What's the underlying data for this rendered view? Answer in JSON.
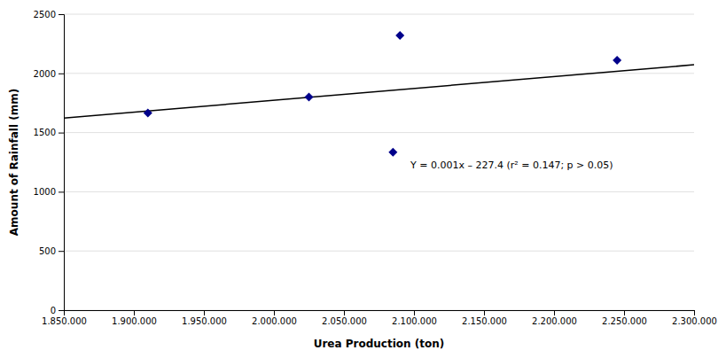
{
  "chart_data": {
    "type": "scatter",
    "xlabel": "Urea Production (ton)",
    "ylabel": "Amount of Rainfall (mm)",
    "annotation": "Y = 0.001x – 227.4  (r² = 0.147; p > 0.05)",
    "series": [
      {
        "type": "scatter",
        "color": "#00008B",
        "marker": "diamond",
        "x": [
          1910000,
          2025000,
          2085000,
          2090000,
          2245000
        ],
        "values": [
          1665,
          1800,
          1335,
          2320,
          2110
        ]
      },
      {
        "type": "line",
        "color": "#000000",
        "line_style": "solid",
        "x": [
          1850000,
          2300000
        ],
        "values": [
          1622.6,
          2072.6
        ]
      }
    ],
    "xlim": [
      1850000,
      2300000
    ],
    "ylim": [
      0,
      2500
    ],
    "xticks": [
      {
        "value": 1850000,
        "label": "1.850.000"
      },
      {
        "value": 1900000,
        "label": "1.900.000"
      },
      {
        "value": 1950000,
        "label": "1.950.000"
      },
      {
        "value": 2000000,
        "label": "2.000.000"
      },
      {
        "value": 2050000,
        "label": "2.050.000"
      },
      {
        "value": 2100000,
        "label": "2.100.000"
      },
      {
        "value": 2150000,
        "label": "2.150.000"
      },
      {
        "value": 2200000,
        "label": "2.200.000"
      },
      {
        "value": 2250000,
        "label": "2.250.000"
      },
      {
        "value": 2300000,
        "label": "2.300.000"
      }
    ],
    "yticks": [
      0,
      500,
      1000,
      1500,
      2000,
      2500
    ],
    "grid": true
  }
}
